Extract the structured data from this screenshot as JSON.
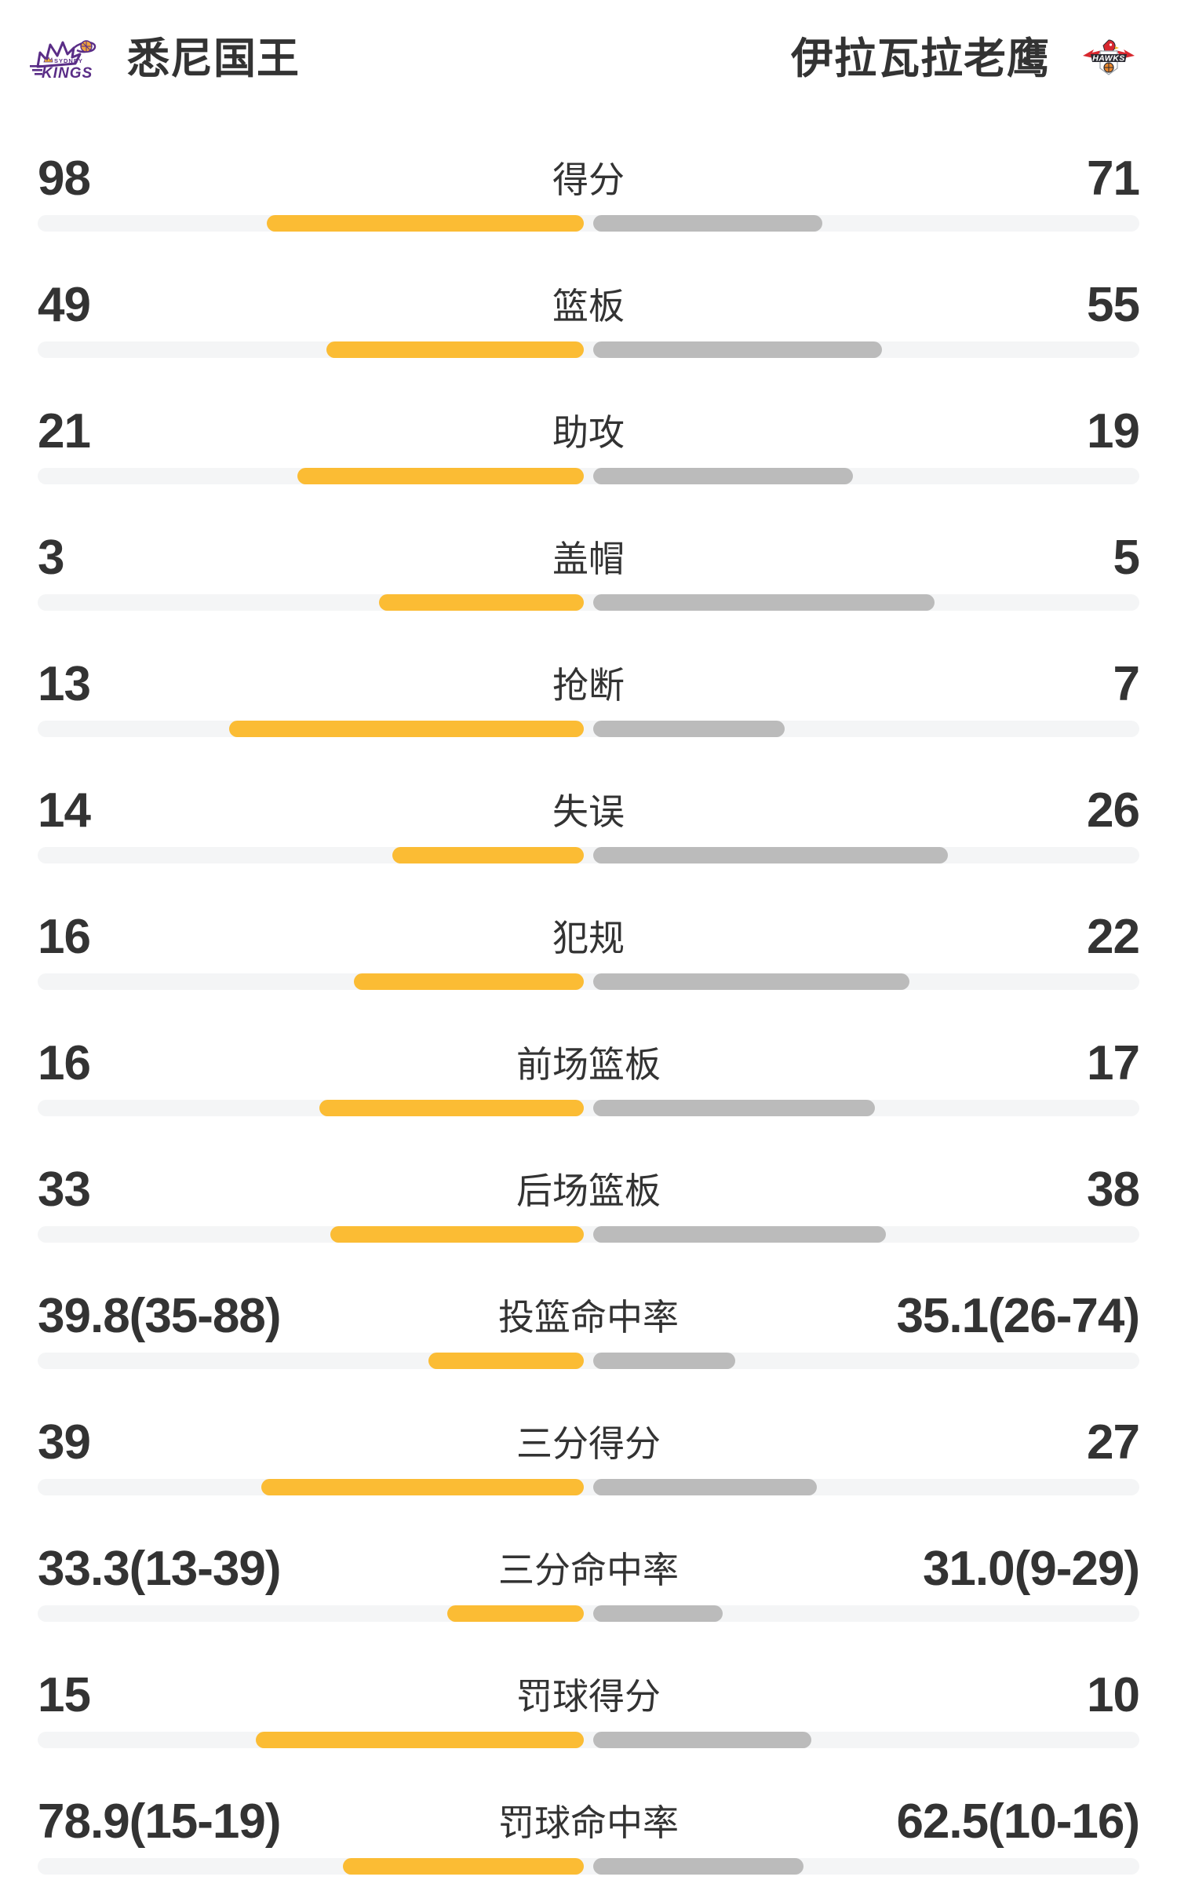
{
  "teams": {
    "left": {
      "name": "悉尼国王",
      "logo_icon": "sydney-kings-logo",
      "primary_color": "#5a2d87"
    },
    "right": {
      "name": "伊拉瓦拉老鹰",
      "logo_icon": "illawarra-hawks-logo",
      "primary_color": "#d7282f"
    }
  },
  "colors": {
    "left_bar": "#fbbc34",
    "right_bar": "#bbbbbb",
    "track": "#f4f5f6",
    "text": "#333333"
  },
  "stats": {
    "rows": [
      {
        "label": "得分",
        "left": "98",
        "right": "71",
        "left_value": 98,
        "right_value": 71,
        "type": "count"
      },
      {
        "label": "篮板",
        "left": "49",
        "right": "55",
        "left_value": 49,
        "right_value": 55,
        "type": "count"
      },
      {
        "label": "助攻",
        "left": "21",
        "right": "19",
        "left_value": 21,
        "right_value": 19,
        "type": "count"
      },
      {
        "label": "盖帽",
        "left": "3",
        "right": "5",
        "left_value": 3,
        "right_value": 5,
        "type": "count"
      },
      {
        "label": "抢断",
        "left": "13",
        "right": "7",
        "left_value": 13,
        "right_value": 7,
        "type": "count"
      },
      {
        "label": "失误",
        "left": "14",
        "right": "26",
        "left_value": 14,
        "right_value": 26,
        "type": "count"
      },
      {
        "label": "犯规",
        "left": "16",
        "right": "22",
        "left_value": 16,
        "right_value": 22,
        "type": "count"
      },
      {
        "label": "前场篮板",
        "left": "16",
        "right": "17",
        "left_value": 16,
        "right_value": 17,
        "type": "count"
      },
      {
        "label": "后场篮板",
        "left": "33",
        "right": "38",
        "left_value": 33,
        "right_value": 38,
        "type": "count"
      },
      {
        "label": "投篮命中率",
        "left": "39.8(35-88)",
        "right": "35.1(26-74)",
        "left_value": 39.8,
        "right_value": 35.1,
        "type": "percent"
      },
      {
        "label": "三分得分",
        "left": "39",
        "right": "27",
        "left_value": 39,
        "right_value": 27,
        "type": "count"
      },
      {
        "label": "三分命中率",
        "left": "33.3(13-39)",
        "right": "31.0(9-29)",
        "left_value": 33.3,
        "right_value": 31.0,
        "type": "percent"
      },
      {
        "label": "罚球得分",
        "left": "15",
        "right": "10",
        "left_value": 15,
        "right_value": 10,
        "type": "count"
      },
      {
        "label": "罚球命中率",
        "left": "78.9(15-19)",
        "right": "62.5(10-16)",
        "left_value": 78.9,
        "right_value": 62.5,
        "type": "percent"
      }
    ]
  }
}
